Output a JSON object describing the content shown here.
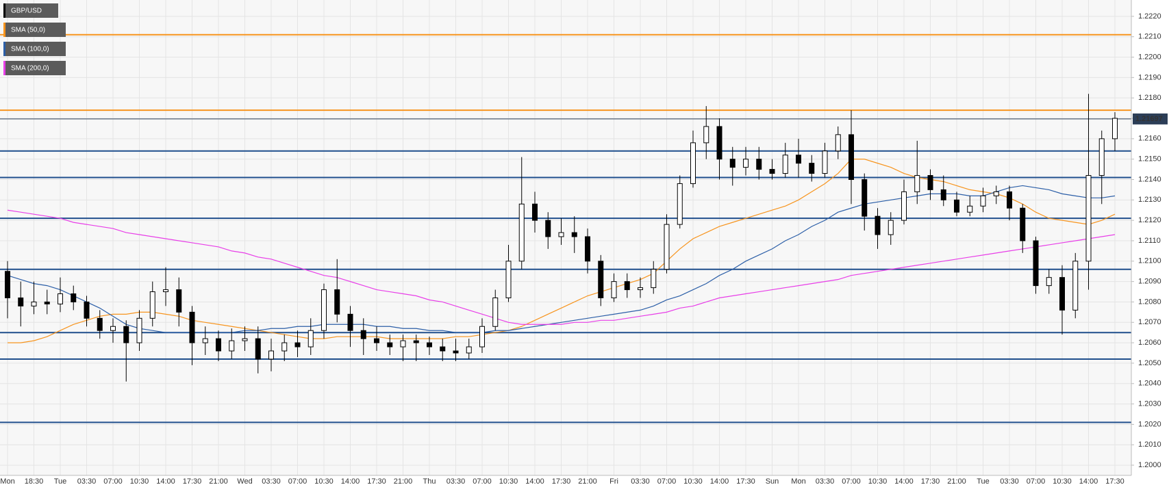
{
  "chart_data": {
    "type": "candlestick",
    "categories": [
      "Mon",
      null,
      "18:30",
      null,
      "Tue",
      null,
      "03:30",
      null,
      "07:00",
      null,
      "10:30",
      null,
      "14:00",
      null,
      "17:30",
      null,
      "21:00",
      null,
      "Wed",
      null,
      "03:30",
      null,
      "07:00",
      null,
      "10:30",
      null,
      "14:00",
      null,
      "17:30",
      null,
      "21:00",
      null,
      "Thu",
      null,
      "03:30",
      null,
      "07:00",
      null,
      "10:30",
      null,
      "14:00",
      null,
      "17:30",
      null,
      "21:00",
      null,
      "Fri",
      null,
      "03:30",
      null,
      "07:00",
      null,
      "10:30",
      null,
      "14:00",
      null,
      "17:30",
      null,
      "Sun",
      null,
      "Mon",
      null,
      "03:30",
      null,
      "07:00",
      null,
      "10:30",
      null,
      "14:00",
      null,
      "17:30",
      null,
      "21:00",
      null,
      "Tue",
      null,
      "03:30",
      null,
      "07:00",
      null,
      "10:30",
      null,
      "14:00",
      null,
      "17:30"
    ],
    "series": [
      {
        "name": "GBP/USD",
        "type": "candlestick",
        "color": "#000000",
        "open": [
          1.2095,
          1.2082,
          1.2078,
          1.208,
          1.2079,
          1.2084,
          1.208,
          1.2072,
          1.2066,
          1.2068,
          1.206,
          1.2072,
          1.2085,
          1.2086,
          1.2075,
          1.206,
          1.2062,
          1.2056,
          1.2061,
          1.2062,
          1.2052,
          1.2056,
          1.206,
          1.2058,
          1.2066,
          1.2086,
          1.2074,
          1.2066,
          1.2062,
          1.206,
          1.2058,
          1.2061,
          1.206,
          1.2058,
          1.2056,
          1.2055,
          1.2058,
          1.2068,
          1.2082,
          1.21,
          1.2128,
          1.212,
          1.2112,
          1.2114,
          1.2112,
          1.21,
          1.2082,
          1.209,
          1.2086,
          1.2087,
          1.2096,
          1.2118,
          1.2138,
          1.2158,
          1.2166,
          1.215,
          1.2146,
          1.215,
          1.2145,
          1.2143,
          1.2152,
          1.2148,
          1.2143,
          1.2154,
          1.2162,
          1.214,
          1.2122,
          1.2113,
          1.212,
          1.2134,
          1.2142,
          1.2135,
          1.213,
          1.2124,
          1.2127,
          1.2132,
          1.2134,
          1.2126,
          1.211,
          1.2088,
          1.2092,
          1.2076,
          1.21,
          1.2142,
          1.216
        ],
        "high": [
          1.21,
          1.209,
          1.209,
          1.2086,
          1.2092,
          1.2088,
          1.2083,
          1.2076,
          1.2072,
          1.2071,
          1.2076,
          1.209,
          1.2097,
          1.2092,
          1.2078,
          1.2068,
          1.2066,
          1.2067,
          1.2068,
          1.2068,
          1.2062,
          1.2064,
          1.2066,
          1.2072,
          1.2089,
          1.2101,
          1.2078,
          1.2072,
          1.2068,
          1.2064,
          1.2064,
          1.2064,
          1.2063,
          1.2062,
          1.2062,
          1.2062,
          1.2072,
          1.2086,
          1.2108,
          1.2151,
          1.2134,
          1.2124,
          1.2121,
          1.2122,
          1.2116,
          1.2103,
          1.2094,
          1.2094,
          1.2092,
          1.21,
          1.2123,
          1.2142,
          1.2164,
          1.2176,
          1.217,
          1.2156,
          1.2156,
          1.2156,
          1.215,
          1.2158,
          1.216,
          1.2152,
          1.2158,
          1.2166,
          1.2174,
          1.2143,
          1.2126,
          1.2124,
          1.214,
          1.2159,
          1.2145,
          1.2142,
          1.2134,
          1.2132,
          1.2136,
          1.2137,
          1.2137,
          1.2128,
          1.2112,
          1.2096,
          1.2098,
          1.2104,
          1.2182,
          1.2164,
          1.2173
        ],
        "low": [
          1.2072,
          1.2068,
          1.2074,
          1.2074,
          1.2075,
          1.2076,
          1.2068,
          1.2062,
          1.206,
          1.2041,
          1.2056,
          1.2068,
          1.2078,
          1.2068,
          1.2049,
          1.2054,
          1.2051,
          1.2052,
          1.2056,
          1.2045,
          1.2046,
          1.2051,
          1.2053,
          1.2054,
          1.2062,
          1.207,
          1.2058,
          1.2054,
          1.2056,
          1.2054,
          1.2051,
          1.2051,
          1.2054,
          1.2051,
          1.2051,
          1.2052,
          1.2055,
          1.2066,
          1.208,
          1.2096,
          1.2114,
          1.2106,
          1.2108,
          1.2104,
          1.2094,
          1.2078,
          1.208,
          1.2082,
          1.2082,
          1.2084,
          1.2094,
          1.2116,
          1.2136,
          1.215,
          1.214,
          1.2137,
          1.2142,
          1.214,
          1.214,
          1.2141,
          1.2141,
          1.2139,
          1.2141,
          1.215,
          1.2128,
          1.2115,
          1.2106,
          1.2108,
          1.2118,
          1.2128,
          1.213,
          1.2127,
          1.2122,
          1.2122,
          1.2124,
          1.2128,
          1.212,
          1.2104,
          1.2084,
          1.2084,
          1.2064,
          1.2072,
          1.2086,
          1.2128,
          1.2154
        ],
        "close": [
          1.2082,
          1.2078,
          1.208,
          1.2079,
          1.2084,
          1.208,
          1.2072,
          1.2066,
          1.2068,
          1.206,
          1.2072,
          1.2085,
          1.2086,
          1.2075,
          1.206,
          1.2062,
          1.2056,
          1.2061,
          1.2062,
          1.2052,
          1.2056,
          1.206,
          1.2058,
          1.2066,
          1.2086,
          1.2074,
          1.2066,
          1.2062,
          1.206,
          1.2058,
          1.2061,
          1.206,
          1.2058,
          1.2056,
          1.2055,
          1.2058,
          1.2068,
          1.2082,
          1.21,
          1.2128,
          1.212,
          1.2112,
          1.2114,
          1.2112,
          1.21,
          1.2082,
          1.209,
          1.2086,
          1.2087,
          1.2096,
          1.2118,
          1.2138,
          1.2158,
          1.2166,
          1.215,
          1.2146,
          1.215,
          1.2145,
          1.2143,
          1.2152,
          1.2148,
          1.2143,
          1.2154,
          1.2162,
          1.214,
          1.2122,
          1.2113,
          1.212,
          1.2134,
          1.2142,
          1.2135,
          1.213,
          1.2124,
          1.2127,
          1.2132,
          1.2134,
          1.2126,
          1.211,
          1.2088,
          1.2092,
          1.2076,
          1.21,
          1.2142,
          1.216,
          1.217
        ]
      },
      {
        "name": "SMA (50,0)",
        "type": "line",
        "color": "#f7941d",
        "values": [
          1.206,
          1.206,
          1.2061,
          1.2063,
          1.2066,
          1.2069,
          1.2071,
          1.2073,
          1.2074,
          1.2074,
          1.2075,
          1.2075,
          1.2074,
          1.2073,
          1.2071,
          1.207,
          1.2069,
          1.2068,
          1.2067,
          1.2066,
          1.2065,
          1.2064,
          1.2063,
          1.2062,
          1.2062,
          1.2063,
          1.2063,
          1.2063,
          1.2063,
          1.2062,
          1.2062,
          1.2062,
          1.2062,
          1.2062,
          1.2063,
          1.2063,
          1.2064,
          1.2065,
          1.2066,
          1.2068,
          1.2071,
          1.2074,
          1.2077,
          1.208,
          1.2083,
          1.2085,
          1.2087,
          1.2089,
          1.2091,
          1.2094,
          1.21,
          1.2106,
          1.2111,
          1.2114,
          1.2117,
          1.2119,
          1.2121,
          1.2123,
          1.2125,
          1.2127,
          1.213,
          1.2134,
          1.2138,
          1.2143,
          1.215,
          1.215,
          1.2148,
          1.2146,
          1.2143,
          1.2141,
          1.214,
          1.2139,
          1.2137,
          1.2135,
          1.2134,
          1.2133,
          1.2131,
          1.2128,
          1.2124,
          1.2121,
          1.212,
          1.2119,
          1.2118,
          1.212,
          1.2123
        ]
      },
      {
        "name": "SMA (100,0)",
        "type": "line",
        "color": "#2b5ea7",
        "values": [
          1.2093,
          1.2091,
          1.2089,
          1.2088,
          1.2086,
          1.2083,
          1.208,
          1.2077,
          1.2073,
          1.2069,
          1.2067,
          1.2066,
          1.2065,
          1.2065,
          1.2065,
          1.2065,
          1.2065,
          1.2065,
          1.2066,
          1.2066,
          1.2067,
          1.2067,
          1.2068,
          1.2068,
          1.2069,
          1.2069,
          1.2069,
          1.2069,
          1.2068,
          1.2068,
          1.2067,
          1.2067,
          1.2066,
          1.2066,
          1.2065,
          1.2065,
          1.2065,
          1.2066,
          1.2066,
          1.2067,
          1.2068,
          1.2069,
          1.207,
          1.2071,
          1.2072,
          1.2073,
          1.2074,
          1.2075,
          1.2076,
          1.2078,
          1.2081,
          1.2083,
          1.2086,
          1.2089,
          1.2093,
          1.2096,
          1.21,
          1.2103,
          1.2106,
          1.211,
          1.2113,
          1.2117,
          1.212,
          1.2124,
          1.2126,
          1.2128,
          1.2129,
          1.213,
          1.2131,
          1.2132,
          1.2133,
          1.2133,
          1.2133,
          1.2132,
          1.2132,
          1.2134,
          1.2136,
          1.2137,
          1.2136,
          1.2135,
          1.2133,
          1.2132,
          1.2131,
          1.2131,
          1.2132
        ]
      },
      {
        "name": "SMA (200,0)",
        "type": "line",
        "color": "#e83ee8",
        "values": [
          1.2125,
          1.2124,
          1.2123,
          1.2122,
          1.2121,
          1.2119,
          1.2118,
          1.2117,
          1.2116,
          1.2114,
          1.2113,
          1.2112,
          1.2111,
          1.211,
          1.2109,
          1.2108,
          1.2107,
          1.2105,
          1.2104,
          1.2102,
          1.2101,
          1.2099,
          1.2097,
          1.2095,
          1.2093,
          1.2092,
          1.209,
          1.2088,
          1.2086,
          1.2085,
          1.2084,
          1.2083,
          1.2081,
          1.208,
          1.2078,
          1.2076,
          1.2074,
          1.2072,
          1.207,
          1.2069,
          1.2069,
          1.2069,
          1.2069,
          1.207,
          1.207,
          1.2071,
          1.2071,
          1.2072,
          1.2073,
          1.2074,
          1.2075,
          1.2077,
          1.2078,
          1.208,
          1.2082,
          1.2083,
          1.2084,
          1.2085,
          1.2086,
          1.2087,
          1.2088,
          1.2089,
          1.209,
          1.2091,
          1.2093,
          1.2094,
          1.2095,
          1.2096,
          1.2097,
          1.2098,
          1.2099,
          1.21,
          1.2101,
          1.2102,
          1.2103,
          1.2104,
          1.2105,
          1.2106,
          1.2107,
          1.2108,
          1.2109,
          1.211,
          1.2111,
          1.2112,
          1.2113
        ]
      }
    ],
    "ylim": [
      1.1995,
      1.2228
    ],
    "yticks": [
      {
        "value": 1.2,
        "label": "1.2000"
      },
      {
        "value": 1.201,
        "label": "1.2010"
      },
      {
        "value": 1.202,
        "label": "1.2020"
      },
      {
        "value": 1.203,
        "label": "1.2030"
      },
      {
        "value": 1.204,
        "label": "1.2040"
      },
      {
        "value": 1.205,
        "label": "1.2050"
      },
      {
        "value": 1.206,
        "label": "1.2060"
      },
      {
        "value": 1.207,
        "label": "1.2070"
      },
      {
        "value": 1.208,
        "label": "1.2080"
      },
      {
        "value": 1.209,
        "label": "1.2090"
      },
      {
        "value": 1.21,
        "label": "1.2100"
      },
      {
        "value": 1.211,
        "label": "1.2110"
      },
      {
        "value": 1.212,
        "label": "1.2120"
      },
      {
        "value": 1.213,
        "label": "1.2130"
      },
      {
        "value": 1.214,
        "label": "1.2140"
      },
      {
        "value": 1.215,
        "label": "1.2150"
      },
      {
        "value": 1.216,
        "label": "1.2160"
      },
      {
        "value": 1.217,
        "label": "1.2170"
      },
      {
        "value": 1.218,
        "label": "1.2180"
      },
      {
        "value": 1.219,
        "label": "1.2190"
      },
      {
        "value": 1.22,
        "label": "1.2200"
      },
      {
        "value": 1.221,
        "label": "1.2210"
      },
      {
        "value": 1.222,
        "label": "1.2220"
      }
    ],
    "grid": true,
    "levels": [
      {
        "value": 1.2211,
        "color": "#f7941d"
      },
      {
        "value": 1.2174,
        "color": "#f7941d"
      },
      {
        "value": 1.2154,
        "color": "#1f4e8c"
      },
      {
        "value": 1.2141,
        "color": "#1f4e8c"
      },
      {
        "value": 1.2121,
        "color": "#1f4e8c"
      },
      {
        "value": 1.2096,
        "color": "#1f4e8c"
      },
      {
        "value": 1.2065,
        "color": "#1f4e8c"
      },
      {
        "value": 1.2052,
        "color": "#1f4e8c"
      },
      {
        "value": 1.2021,
        "color": "#1f4e8c"
      }
    ],
    "last_price": 1.21697,
    "last_price_color": "#2c3e57"
  }
}
